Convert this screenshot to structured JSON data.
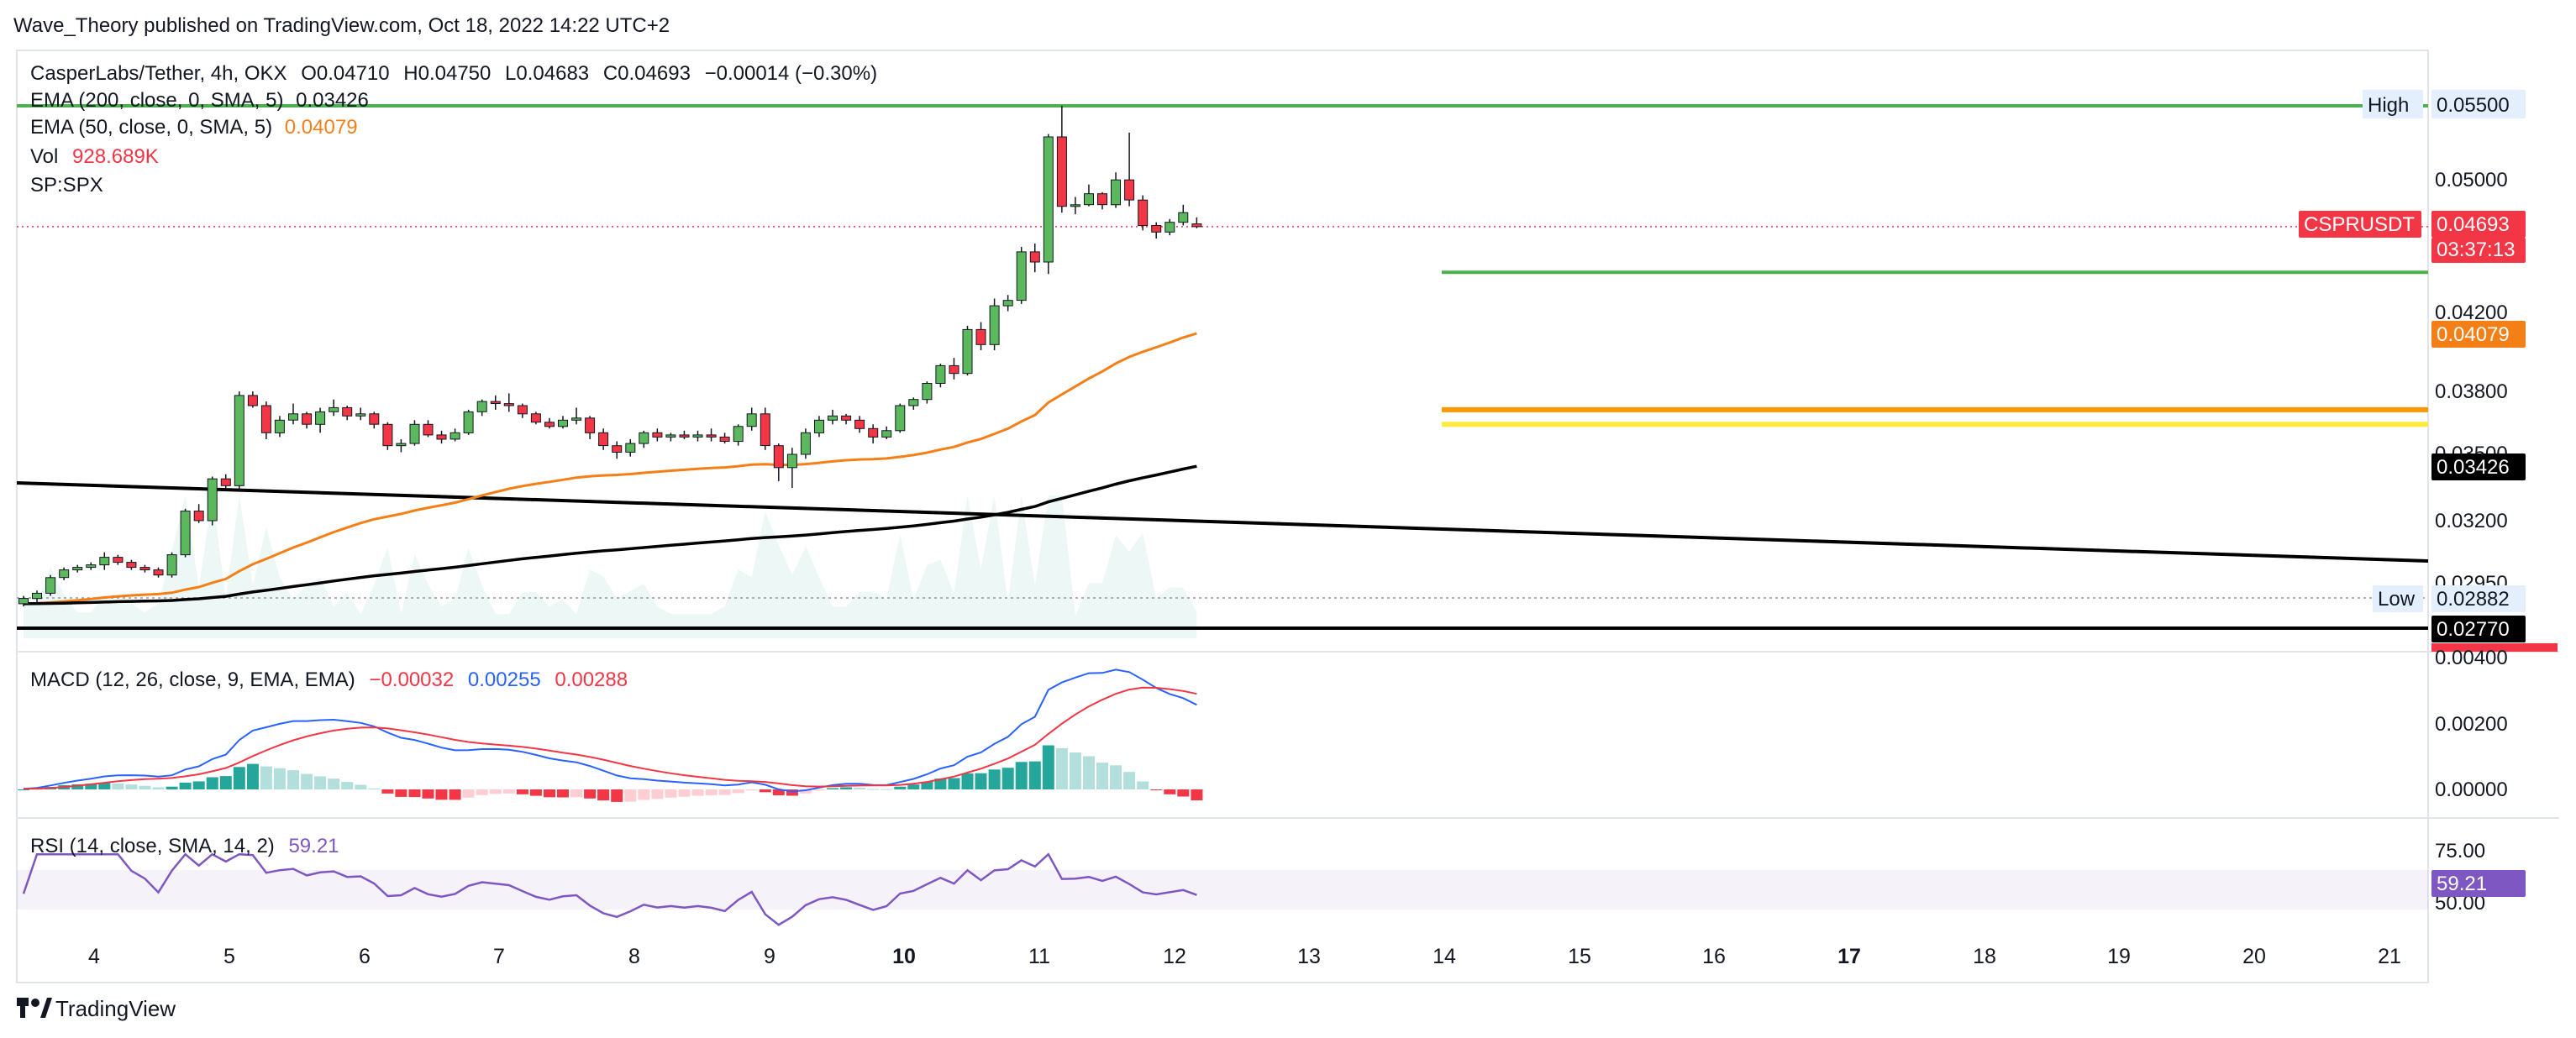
{
  "publisher_line": "Wave_Theory published on TradingView.com, Oct 18, 2022 14:22 UTC+2",
  "footer_brand": "TradingView",
  "colors": {
    "up": "#5cb85c",
    "down": "#f23645",
    "ema50": "#f57f17",
    "ema200": "#000000",
    "macd": "#2962ff",
    "signal": "#f23645",
    "rsi": "#7e57c2",
    "green_level": "#4caf50",
    "orange_level": "#ff9800",
    "yellow_level": "#ffeb3b"
  },
  "legend": {
    "symbol": "CasperLabs/Tether, 4h, OKX",
    "O": "O0.04710",
    "H": "H0.04750",
    "L": "L0.04683",
    "C": "C0.04693",
    "change": "−0.00014 (−0.30%)",
    "ema200_label": "EMA (200, close, 0, SMA, 5)",
    "ema200_value": "0.03426",
    "ema50_label": "EMA (50, close, 0, SMA, 5)",
    "ema50_value": "0.04079",
    "vol_label": "Vol",
    "vol_value": "928.689K",
    "spx_label": "SP:SPX"
  },
  "macd_legend": {
    "label": "MACD (12, 26, close, 9, EMA, EMA)",
    "hist": "−0.00032",
    "macd": "0.00255",
    "signal": "0.00288"
  },
  "rsi_legend": {
    "label": "RSI (14, close, SMA, 14, 2)",
    "value": "59.21"
  },
  "price_scale": {
    "ticks": [
      "0.05000",
      "0.04200",
      "0.03800",
      "0.03500",
      "0.03200",
      "0.02950"
    ],
    "high_label": "High",
    "high_value": "0.05500",
    "low_label": "Low",
    "low_value": "0.02882",
    "last_symbol": "CSPRUSDT",
    "last_value": "0.04693",
    "countdown": "03:37:13",
    "ema50_badge": "0.04079",
    "ema200_badge": "0.03426",
    "black_line_badge": "0.02770"
  },
  "macd_scale": {
    "ticks": [
      "0.00400",
      "0.00200",
      "0.00000"
    ]
  },
  "rsi_scale": {
    "ticks": [
      "75.00",
      "50.00"
    ],
    "value_badge": "59.21"
  },
  "time_axis": {
    "labels": [
      "4",
      "5",
      "6",
      "7",
      "8",
      "9",
      "10",
      "11",
      "12",
      "13",
      "14",
      "15",
      "16",
      "17",
      "18",
      "19",
      "20",
      "21"
    ],
    "bold": [
      "10",
      "17"
    ]
  },
  "chart_data": {
    "type": "candlestick",
    "interval": "4h",
    "ohlc": [
      [
        0.0286,
        0.0289,
        0.0285,
        0.0288
      ],
      [
        0.0288,
        0.0291,
        0.0286,
        0.029
      ],
      [
        0.029,
        0.0297,
        0.0289,
        0.0296
      ],
      [
        0.0296,
        0.03,
        0.0295,
        0.0299
      ],
      [
        0.0299,
        0.0301,
        0.0298,
        0.03
      ],
      [
        0.03,
        0.0302,
        0.0299,
        0.0301
      ],
      [
        0.0301,
        0.0306,
        0.0299,
        0.0304
      ],
      [
        0.0304,
        0.0305,
        0.0301,
        0.0302
      ],
      [
        0.0302,
        0.0303,
        0.0299,
        0.03
      ],
      [
        0.03,
        0.0301,
        0.0298,
        0.0299
      ],
      [
        0.0299,
        0.03,
        0.0296,
        0.0297
      ],
      [
        0.0297,
        0.0306,
        0.0296,
        0.0305
      ],
      [
        0.0305,
        0.0324,
        0.0304,
        0.0323
      ],
      [
        0.0323,
        0.0326,
        0.0318,
        0.0319
      ],
      [
        0.0319,
        0.0338,
        0.0317,
        0.0337
      ],
      [
        0.0337,
        0.0339,
        0.0333,
        0.0334
      ],
      [
        0.0334,
        0.0378,
        0.0332,
        0.0376
      ],
      [
        0.0376,
        0.0378,
        0.037,
        0.0371
      ],
      [
        0.0371,
        0.0373,
        0.0355,
        0.0358
      ],
      [
        0.0358,
        0.0366,
        0.0356,
        0.0364
      ],
      [
        0.0364,
        0.0372,
        0.0362,
        0.0367
      ],
      [
        0.0367,
        0.0368,
        0.036,
        0.0362
      ],
      [
        0.0362,
        0.037,
        0.0358,
        0.0368
      ],
      [
        0.0368,
        0.0374,
        0.0366,
        0.037
      ],
      [
        0.037,
        0.0371,
        0.0364,
        0.0366
      ],
      [
        0.0366,
        0.037,
        0.0364,
        0.0367
      ],
      [
        0.0367,
        0.0368,
        0.036,
        0.0362
      ],
      [
        0.0362,
        0.0363,
        0.035,
        0.0352
      ],
      [
        0.0352,
        0.0355,
        0.0349,
        0.0353
      ],
      [
        0.0353,
        0.0364,
        0.0352,
        0.0362
      ],
      [
        0.0362,
        0.0364,
        0.0356,
        0.0357
      ],
      [
        0.0357,
        0.0359,
        0.0353,
        0.0355
      ],
      [
        0.0355,
        0.036,
        0.0354,
        0.0358
      ],
      [
        0.0358,
        0.0369,
        0.0357,
        0.0368
      ],
      [
        0.0368,
        0.0374,
        0.0366,
        0.0373
      ],
      [
        0.0373,
        0.0376,
        0.0369,
        0.0372
      ],
      [
        0.0372,
        0.0377,
        0.0368,
        0.0371
      ],
      [
        0.0371,
        0.0372,
        0.0365,
        0.0367
      ],
      [
        0.0367,
        0.0368,
        0.0362,
        0.0363
      ],
      [
        0.0363,
        0.0365,
        0.036,
        0.0361
      ],
      [
        0.0361,
        0.0366,
        0.036,
        0.0364
      ],
      [
        0.0364,
        0.037,
        0.0362,
        0.0365
      ],
      [
        0.0365,
        0.0366,
        0.0355,
        0.0358
      ],
      [
        0.0358,
        0.036,
        0.035,
        0.0352
      ],
      [
        0.0352,
        0.0354,
        0.0346,
        0.0349
      ],
      [
        0.0349,
        0.0355,
        0.0347,
        0.0353
      ],
      [
        0.0353,
        0.0359,
        0.0351,
        0.0358
      ],
      [
        0.0358,
        0.036,
        0.0354,
        0.0356
      ],
      [
        0.0356,
        0.0358,
        0.0354,
        0.0357
      ],
      [
        0.0357,
        0.0359,
        0.0355,
        0.0356
      ],
      [
        0.0356,
        0.0359,
        0.0354,
        0.0357
      ],
      [
        0.0357,
        0.036,
        0.0354,
        0.0356
      ],
      [
        0.0356,
        0.0358,
        0.0353,
        0.0354
      ],
      [
        0.0354,
        0.0362,
        0.0352,
        0.0361
      ],
      [
        0.0361,
        0.037,
        0.0359,
        0.0367
      ],
      [
        0.0367,
        0.037,
        0.035,
        0.0352
      ],
      [
        0.0352,
        0.0353,
        0.0336,
        0.0342
      ],
      [
        0.0342,
        0.0351,
        0.0333,
        0.0348
      ],
      [
        0.0348,
        0.036,
        0.0346,
        0.0358
      ],
      [
        0.0358,
        0.0366,
        0.0356,
        0.0364
      ],
      [
        0.0364,
        0.0369,
        0.0362,
        0.0366
      ],
      [
        0.0366,
        0.0367,
        0.0362,
        0.0364
      ],
      [
        0.0364,
        0.0366,
        0.0358,
        0.036
      ],
      [
        0.036,
        0.0362,
        0.0353,
        0.0356
      ],
      [
        0.0356,
        0.0361,
        0.0355,
        0.0359
      ],
      [
        0.0359,
        0.0372,
        0.0358,
        0.0371
      ],
      [
        0.0371,
        0.0375,
        0.0369,
        0.0374
      ],
      [
        0.0374,
        0.0383,
        0.0372,
        0.0382
      ],
      [
        0.0382,
        0.0392,
        0.038,
        0.0391
      ],
      [
        0.0391,
        0.0395,
        0.0384,
        0.0387
      ],
      [
        0.0387,
        0.0412,
        0.0386,
        0.041
      ],
      [
        0.041,
        0.0414,
        0.0399,
        0.0402
      ],
      [
        0.0402,
        0.0427,
        0.0399,
        0.0423
      ],
      [
        0.0423,
        0.0429,
        0.042,
        0.0426
      ],
      [
        0.0426,
        0.0457,
        0.0424,
        0.0454
      ],
      [
        0.0454,
        0.0459,
        0.0442,
        0.0448
      ],
      [
        0.0448,
        0.053,
        0.0441,
        0.0528
      ],
      [
        0.0528,
        0.055,
        0.0478,
        0.0482
      ],
      [
        0.0482,
        0.0488,
        0.0477,
        0.0483
      ],
      [
        0.0483,
        0.0496,
        0.0482,
        0.049
      ],
      [
        0.049,
        0.0491,
        0.048,
        0.0483
      ],
      [
        0.0483,
        0.0504,
        0.0481,
        0.0499
      ],
      [
        0.0499,
        0.0531,
        0.0482,
        0.0486
      ],
      [
        0.0486,
        0.0489,
        0.0467,
        0.047
      ],
      [
        0.047,
        0.0472,
        0.0462,
        0.0466
      ],
      [
        0.0466,
        0.0474,
        0.0464,
        0.0472
      ],
      [
        0.0472,
        0.0483,
        0.047,
        0.0478
      ],
      [
        0.0471,
        0.0475,
        0.04683,
        0.04693
      ]
    ],
    "ema50_end": 0.04079,
    "ema200_end": 0.03426,
    "levels": {
      "high": 0.055,
      "green_support": 0.0442,
      "orange": 0.0369,
      "yellow": 0.0362,
      "low": 0.02882,
      "black_horizontal": 0.0277
    },
    "macd": {
      "ylim": [
        -0.0004,
        0.0044
      ],
      "last_macd": 0.00255,
      "last_signal": 0.00288,
      "last_hist": -0.00032
    },
    "rsi": {
      "ylim": [
        40,
        85
      ],
      "band": [
        50,
        75
      ],
      "last": 59.21
    }
  }
}
